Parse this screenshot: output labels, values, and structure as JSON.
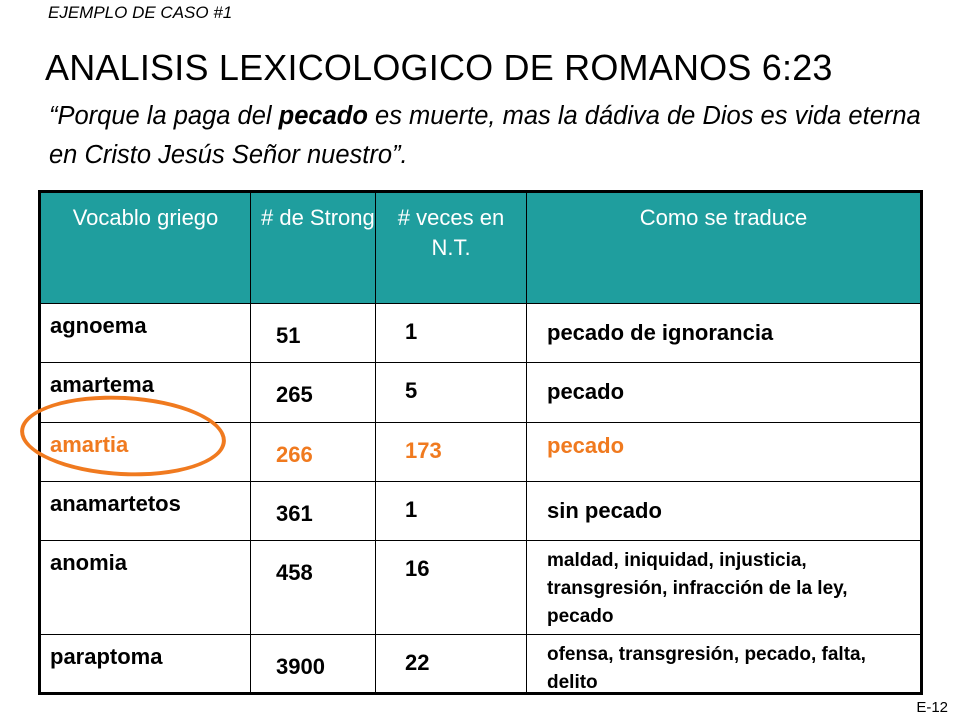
{
  "case_label": "EJEMPLO DE CASO #1",
  "title": "ANALISIS LEXICOLOGICO DE ROMANOS 6:23",
  "verse": {
    "before": "“Porque la paga del ",
    "bold": "pecado",
    "after": " es muerte, mas la dádiva de Dios es vida eterna en Cristo Jesús Señor nuestro”."
  },
  "table": {
    "headers": {
      "word": "Vocablo griego",
      "strong": "# de Strong",
      "count": "# veces en N.T.",
      "translation": "Como se traduce"
    },
    "rows": [
      {
        "word": "agnoema",
        "strong": "51",
        "count": "1",
        "translation": "pecado de ignorancia"
      },
      {
        "word": "amartema",
        "strong": "265",
        "count": "5",
        "translation": "pecado"
      },
      {
        "word": "amartia",
        "strong": "266",
        "count": "173",
        "translation": "pecado"
      },
      {
        "word": "anamartetos",
        "strong": "361",
        "count": "1",
        "translation": "sin pecado"
      },
      {
        "word": "anomia",
        "strong": "458",
        "count": "16",
        "translation": "maldad, iniquidad, injusticia, transgresión, infracción de la ley, pecado"
      },
      {
        "word": "paraptoma",
        "strong": "3900",
        "count": "22",
        "translation": "ofensa, transgresión, pecado, falta, delito"
      }
    ]
  },
  "highlight_color": "#f07a1f",
  "header_color": "#1f9e9e",
  "page_code": "E-12"
}
